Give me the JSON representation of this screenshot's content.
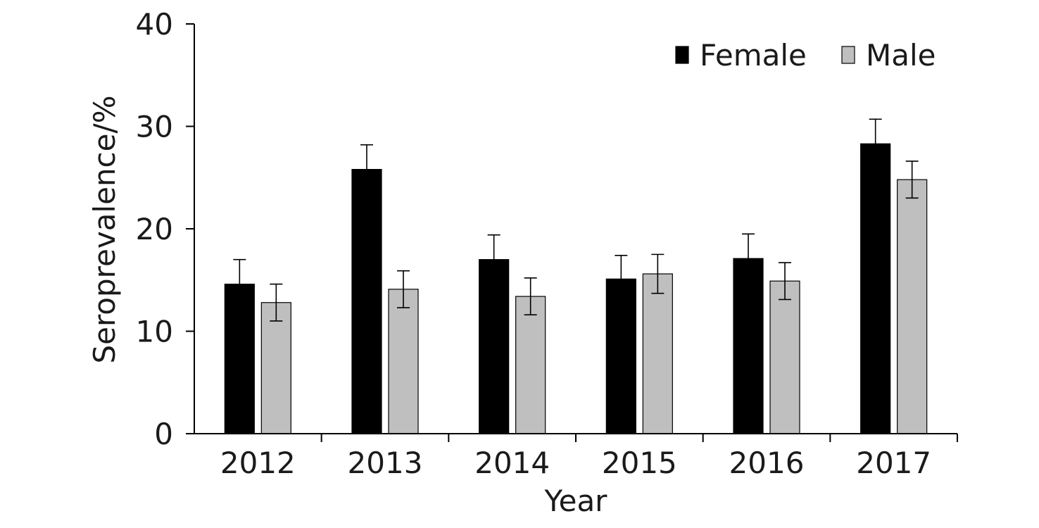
{
  "chart_data": {
    "type": "bar",
    "categories": [
      "2012",
      "2013",
      "2014",
      "2015",
      "2016",
      "2017"
    ],
    "series": [
      {
        "name": "Female",
        "color": "#000000",
        "values": [
          14.6,
          25.8,
          17.0,
          15.1,
          17.1,
          28.3
        ],
        "error": [
          2.4,
          2.4,
          2.4,
          2.3,
          2.4,
          2.4
        ]
      },
      {
        "name": "Male",
        "color": "#bfbfbf",
        "values": [
          12.8,
          14.1,
          13.4,
          15.6,
          14.9,
          24.8
        ],
        "error": [
          1.8,
          1.8,
          1.8,
          1.9,
          1.8,
          1.8
        ]
      }
    ],
    "xlabel": "Year",
    "ylabel": "Seroprevalence/%",
    "ylim": [
      0,
      40
    ],
    "yticks": [
      0,
      10,
      20,
      30,
      40
    ],
    "legend_position": "top-right",
    "grid": false
  }
}
